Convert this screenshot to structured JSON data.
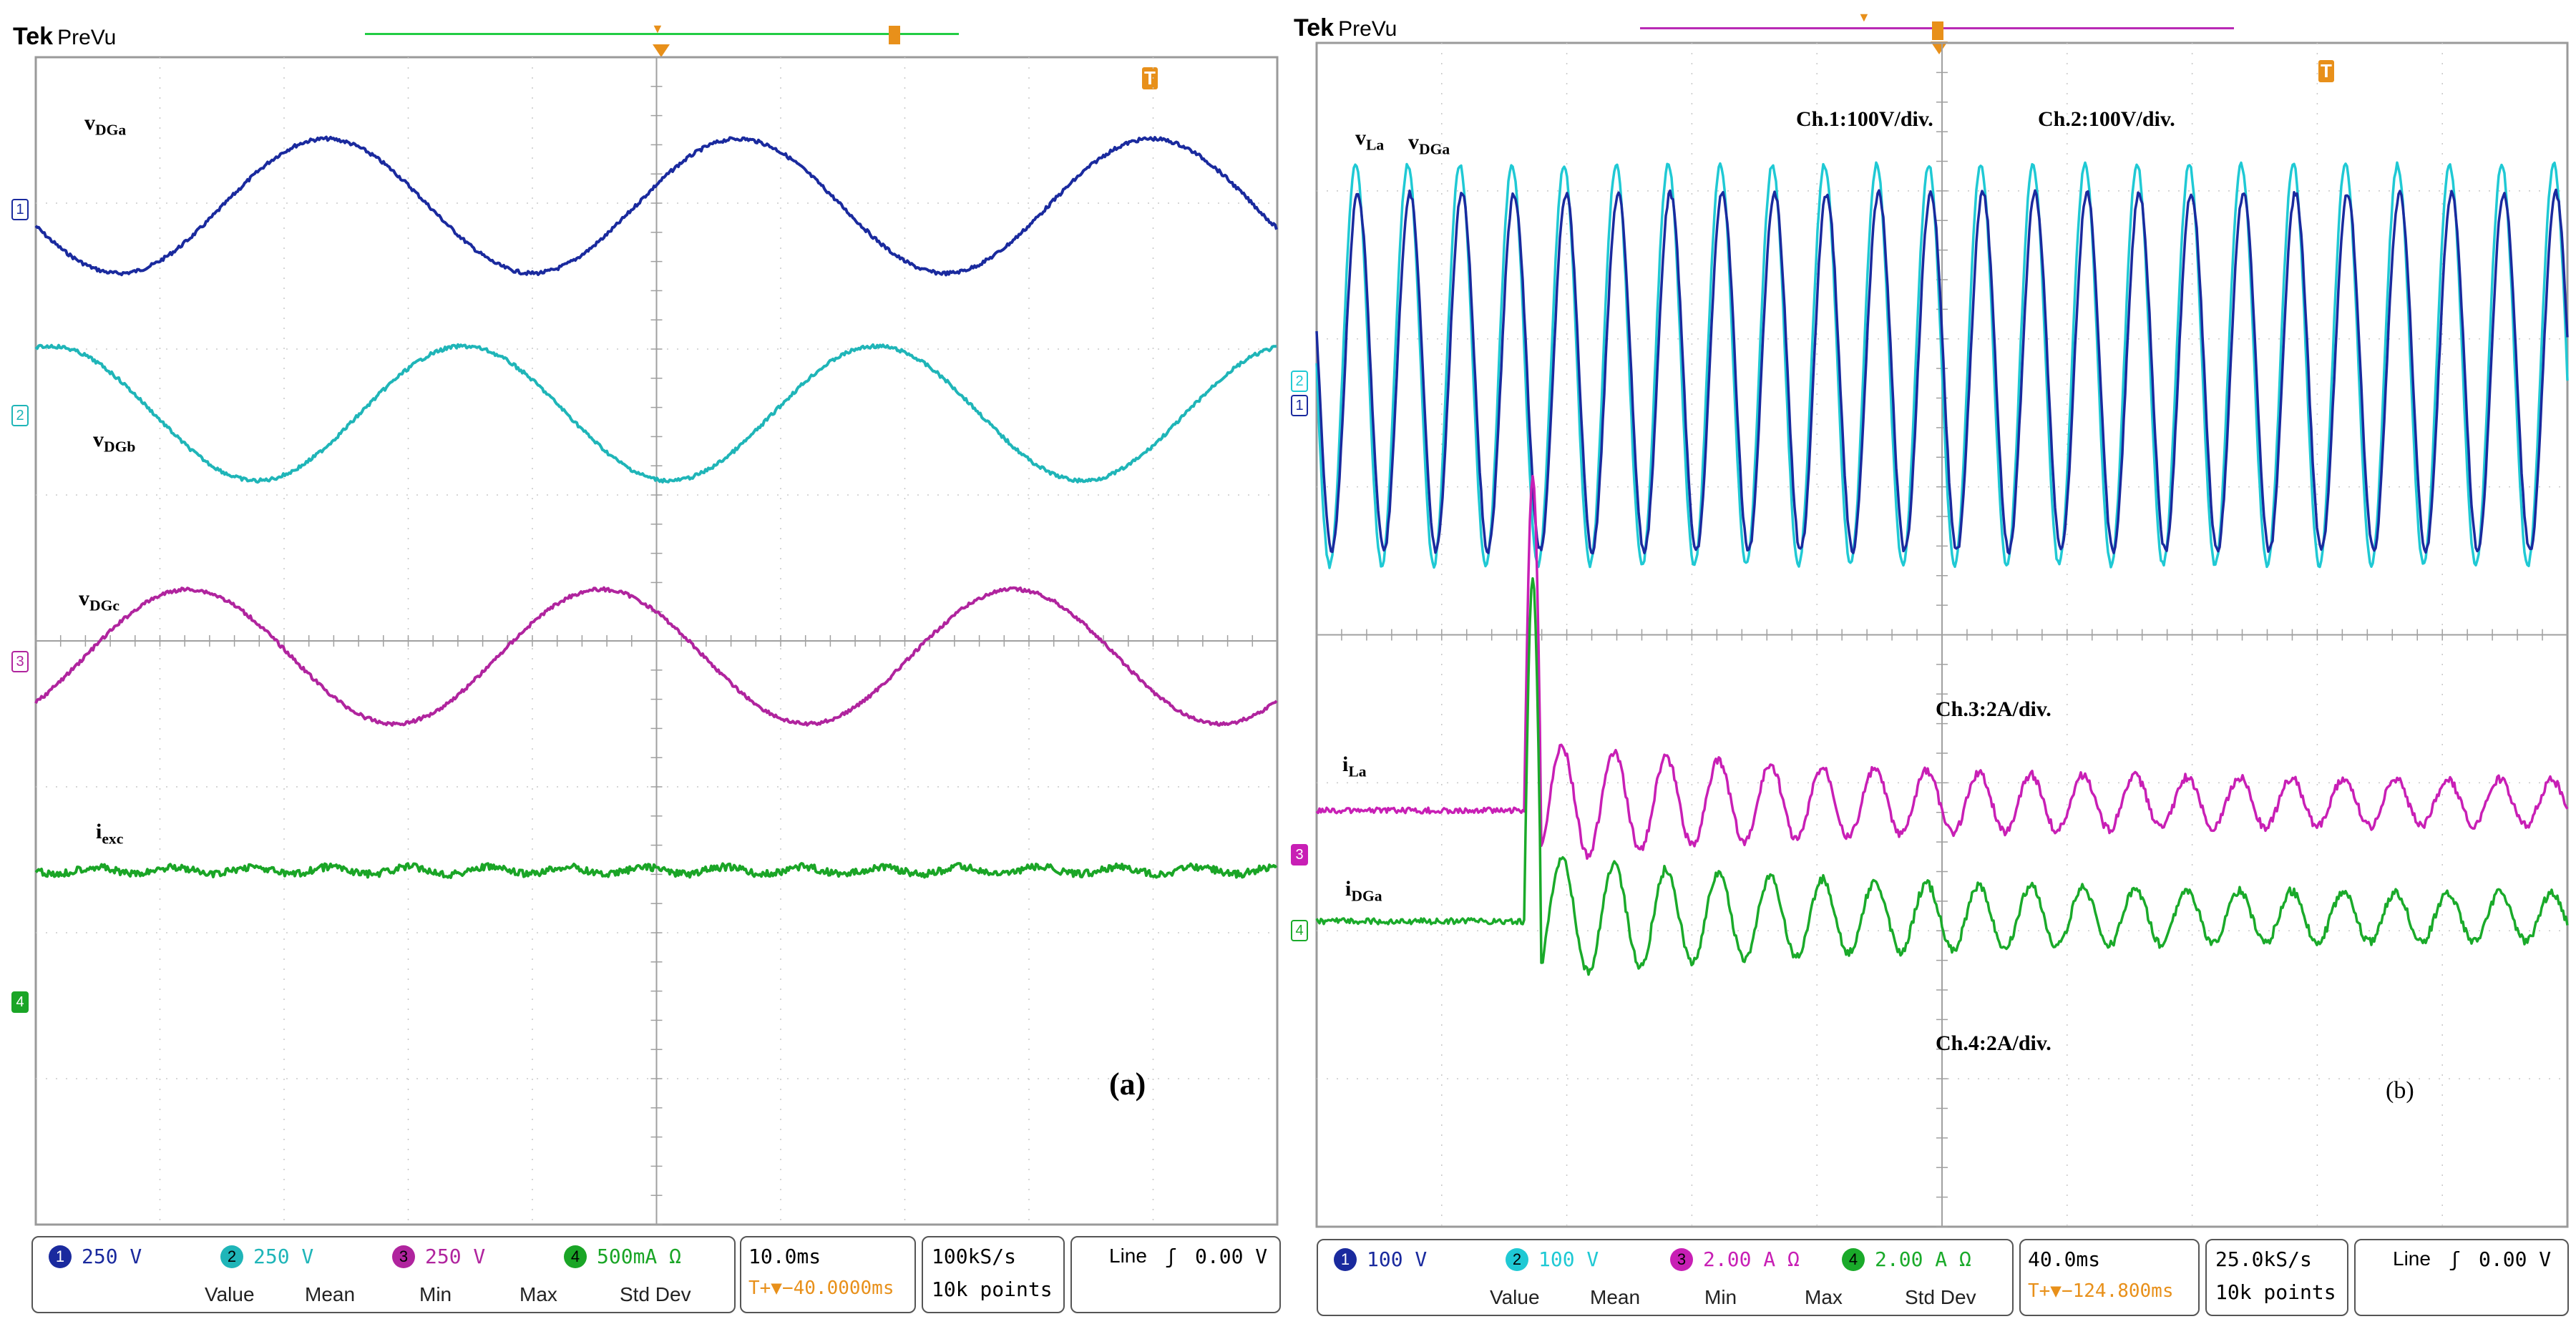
{
  "panel_a": {
    "brand": "Tek",
    "mode": "PreVu",
    "trigger_marker": "T",
    "panel_label": "(a)",
    "traces": [
      {
        "label_main": "v",
        "label_sub": "DGa",
        "channel": "1",
        "color": "#1a2a9e"
      },
      {
        "label_main": "v",
        "label_sub": "DGb",
        "channel": "2",
        "color": "#1fb5b8"
      },
      {
        "label_main": "v",
        "label_sub": "DGc",
        "channel": "3",
        "color": "#b0249e"
      },
      {
        "label_main": "i",
        "label_sub": "exc",
        "channel": "4",
        "color": "#1aa526"
      }
    ],
    "status": {
      "ch1": {
        "num": "1",
        "scale": "250 V"
      },
      "ch2": {
        "num": "2",
        "scale": "250 V"
      },
      "ch3": {
        "num": "3",
        "scale": "250 V"
      },
      "ch4": {
        "num": "4",
        "scale": "500mA Ω"
      },
      "timebase": "10.0ms",
      "trigger_pos": "T+▼−40.0000ms",
      "sample_rate": "100kS/s",
      "record": "10k points",
      "trigger_source": "Line",
      "trigger_slope": "ʃ",
      "trigger_level": "0.00 V",
      "measure_headers": [
        "Value",
        "Mean",
        "Min",
        "Max",
        "Std Dev"
      ]
    }
  },
  "panel_b": {
    "brand": "Tek",
    "mode": "PreVu",
    "trigger_marker": "T",
    "panel_label": "(b)",
    "annotations": {
      "ch1": "Ch.1:100V/div.",
      "ch2": "Ch.2:100V/div.",
      "ch3": "Ch.3:2A/div.",
      "ch4": "Ch.4:2A/div."
    },
    "traces": [
      {
        "label_main": "v",
        "label_sub": "La",
        "channel": "2",
        "color": "#1fc9d4"
      },
      {
        "label_main": "v",
        "label_sub": "DGa",
        "channel": "1",
        "color": "#1a2a9e"
      },
      {
        "label_main": "i",
        "label_sub": "La",
        "channel": "3",
        "color": "#c81fb5"
      },
      {
        "label_main": "i",
        "label_sub": "DGa",
        "channel": "4",
        "color": "#1aaa2a"
      }
    ],
    "status": {
      "ch1": {
        "num": "1",
        "scale": "100 V"
      },
      "ch2": {
        "num": "2",
        "scale": "100 V"
      },
      "ch3": {
        "num": "3",
        "scale": "2.00 A Ω"
      },
      "ch4": {
        "num": "4",
        "scale": "2.00 A Ω"
      },
      "timebase": "40.0ms",
      "trigger_pos": "T+▼−124.800ms",
      "sample_rate": "25.0kS/s",
      "record": "10k points",
      "trigger_source": "Line",
      "trigger_slope": "ʃ",
      "trigger_level": "0.00 V",
      "measure_headers": [
        "Value",
        "Mean",
        "Min",
        "Max",
        "Std Dev"
      ]
    }
  }
}
